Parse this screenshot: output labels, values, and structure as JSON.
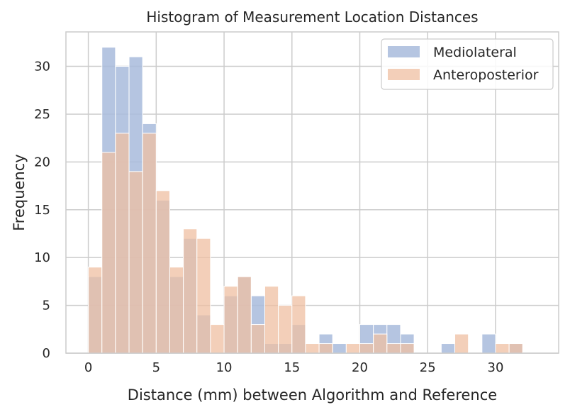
{
  "chart_data": {
    "type": "bar",
    "title": "Histogram of Measurement Location Distances",
    "xlabel": "Distance (mm) between Algorithm and Reference",
    "ylabel": "Frequency",
    "xlim": [
      -1.65,
      34.65
    ],
    "ylim": [
      0,
      33.6
    ],
    "bin_width": 1,
    "bin_starts": [
      0,
      1,
      2,
      3,
      4,
      5,
      6,
      7,
      8,
      9,
      10,
      11,
      12,
      13,
      14,
      15,
      16,
      17,
      18,
      19,
      20,
      21,
      22,
      23,
      24,
      25,
      26,
      27,
      28,
      29,
      30,
      31,
      32,
      33
    ],
    "xticks": [
      0,
      5,
      10,
      15,
      20,
      25,
      30
    ],
    "yticks": [
      0,
      5,
      10,
      15,
      20,
      25,
      30
    ],
    "grid": true,
    "legend_position": "top-right",
    "series": [
      {
        "name": "Mediolateral",
        "color": "#a8bbdc",
        "values": [
          8,
          32,
          30,
          31,
          24,
          16,
          8,
          12,
          4,
          0,
          6,
          8,
          6,
          1,
          1,
          3,
          0,
          2,
          1,
          0,
          3,
          3,
          3,
          2,
          0,
          0,
          1,
          0,
          0,
          2,
          0,
          1,
          0,
          0
        ]
      },
      {
        "name": "Anteroposterior",
        "color": "#efbfa1",
        "values": [
          9,
          21,
          23,
          19,
          23,
          17,
          9,
          13,
          12,
          3,
          7,
          8,
          3,
          7,
          5,
          6,
          1,
          1,
          0,
          1,
          1,
          2,
          1,
          1,
          0,
          0,
          0,
          2,
          0,
          0,
          1,
          1,
          0,
          0
        ]
      }
    ]
  }
}
